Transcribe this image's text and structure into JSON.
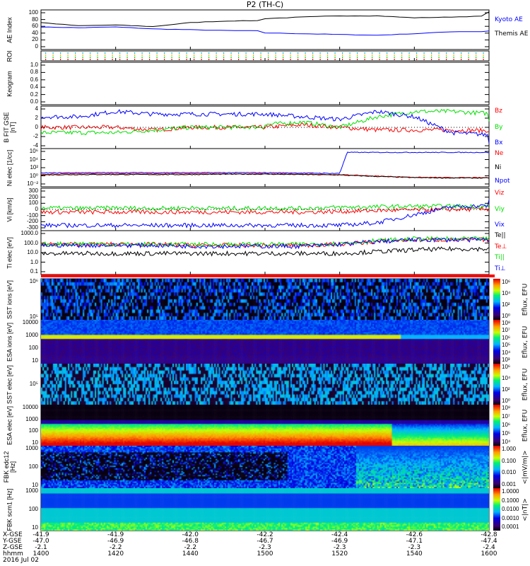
{
  "title": "P2 (TH-C)",
  "colors": {
    "red": "#ff0000",
    "green": "#00e000",
    "blue": "#0000ff",
    "black": "#000000"
  },
  "chart_data": [
    {
      "type": "line",
      "id": "ae",
      "ylabel": "AE Index",
      "ylim": [
        0,
        100
      ],
      "yticks": [
        "100",
        "80",
        "60",
        "40",
        "20",
        "0"
      ],
      "x": [
        1400,
        1410,
        1420,
        1430,
        1440,
        1450,
        1500,
        1510,
        1520,
        1530,
        1540,
        1550,
        1600
      ],
      "series": [
        {
          "name": "Kyoto AE",
          "color": "#0000ff",
          "values": [
            57,
            55,
            57,
            52,
            50,
            48,
            42,
            40,
            38,
            36,
            40,
            45,
            47
          ]
        },
        {
          "name": "Themis AE",
          "color": "#000000",
          "values": [
            68,
            60,
            62,
            58,
            68,
            72,
            78,
            82,
            85,
            85,
            80,
            82,
            95
          ]
        }
      ]
    },
    {
      "type": "table",
      "id": "roi",
      "ylabel": "ROI"
    },
    {
      "type": "line",
      "id": "keogram",
      "ylabel": "Keogram",
      "ylim": [
        0,
        1
      ],
      "yticks": [
        "1.0",
        "0.8",
        "0.6",
        "0.4",
        "0.2",
        "0.0"
      ],
      "series": []
    },
    {
      "type": "line",
      "id": "bfit",
      "ylabel": "B FIT GSE [nT]",
      "ylim": [
        -4,
        4
      ],
      "yticks": [
        "4",
        "2",
        "0",
        "-2",
        "-4"
      ],
      "x": [
        1400,
        1410,
        1420,
        1430,
        1440,
        1450,
        1500,
        1510,
        1520,
        1530,
        1540,
        1550,
        1600
      ],
      "series": [
        {
          "name": "Bz",
          "color": "#ff0000",
          "values": [
            0,
            0,
            0,
            -0.5,
            0,
            0,
            0,
            0.5,
            0,
            -0.5,
            -0.5,
            -0.5,
            -1
          ]
        },
        {
          "name": "By",
          "color": "#00e000",
          "values": [
            -1,
            -1,
            -1,
            -0.5,
            0,
            0,
            0.5,
            1,
            0,
            2,
            3,
            3,
            1
          ]
        },
        {
          "name": "Bx",
          "color": "#0000ff",
          "values": [
            2,
            2,
            3,
            2.5,
            2.5,
            2.5,
            2.5,
            2,
            1.5,
            3,
            2,
            -1,
            -3
          ]
        }
      ]
    },
    {
      "type": "line",
      "id": "ni",
      "ylabel": "Ni elec [1/cc]",
      "scale": "log",
      "ylim": [
        -3,
        7
      ],
      "yticks": [
        "10⁶",
        "10⁴",
        "10²",
        "10⁰",
        "10⁻²"
      ],
      "x": [
        1400,
        1410,
        1420,
        1430,
        1440,
        1450,
        1500,
        1510,
        1520,
        1522,
        1530,
        1540,
        1550,
        1600
      ],
      "series": [
        {
          "name": "Ne",
          "color": "#ff0000",
          "values": [
            0.3,
            0.4,
            0.4,
            0.4,
            0.4,
            0.4,
            0.4,
            0.3,
            0.2,
            0.1,
            -0.2,
            -0.5,
            -0.6,
            -0.6
          ]
        },
        {
          "name": "Ni",
          "color": "#000000",
          "values": [
            0.1,
            0.2,
            0.2,
            0.2,
            0.2,
            0.3,
            0.3,
            0.2,
            0.1,
            0,
            -0.3,
            -0.6,
            -0.7,
            -0.7
          ]
        },
        {
          "name": "Npot",
          "color": "#0000ff",
          "values": [
            0.6,
            0.7,
            0.7,
            0.7,
            0.7,
            0.7,
            0.7,
            0.6,
            0.5,
            6.0,
            6.0,
            6.0,
            6.0,
            6.0
          ]
        }
      ]
    },
    {
      "type": "line",
      "id": "vi",
      "ylabel": "Vi [km/s]",
      "ylim": [
        -400,
        400
      ],
      "yticks": [
        "300",
        "200",
        "100",
        "0",
        "-100",
        "-200",
        "-300"
      ],
      "x": [
        1400,
        1410,
        1420,
        1430,
        1440,
        1450,
        1500,
        1510,
        1520,
        1530,
        1540,
        1550,
        1600
      ],
      "series": [
        {
          "name": "Viz",
          "color": "#ff0000",
          "values": [
            -50,
            -50,
            -50,
            -50,
            -50,
            -50,
            -50,
            -50,
            -40,
            -20,
            -10,
            0,
            20
          ]
        },
        {
          "name": "Viy",
          "color": "#00e000",
          "values": [
            30,
            20,
            30,
            20,
            30,
            20,
            30,
            20,
            40,
            50,
            60,
            60,
            50
          ]
        },
        {
          "name": "Vix",
          "color": "#0000ff",
          "values": [
            -300,
            -300,
            -300,
            -300,
            -300,
            -300,
            -300,
            -300,
            -300,
            -250,
            -100,
            50,
            150
          ]
        }
      ]
    },
    {
      "type": "line",
      "id": "ti",
      "ylabel": "Ti elec [eV]",
      "scale": "log",
      "ylim": [
        -1.3,
        3.5
      ],
      "yticks": [
        "1000.0",
        "100.0",
        "10.0",
        "1.0",
        "0.1"
      ],
      "x": [
        1400,
        1410,
        1420,
        1430,
        1440,
        1450,
        1500,
        1510,
        1520,
        1530,
        1540,
        1550,
        1600
      ],
      "series": [
        {
          "name": "Te||",
          "color": "#000000",
          "values": [
            1.0,
            1.0,
            1.0,
            1.0,
            1.0,
            1.0,
            1.0,
            1.0,
            1.0,
            1.2,
            1.4,
            1.5,
            1.5
          ]
        },
        {
          "name": "Te⊥",
          "color": "#ff0000",
          "values": [
            2.0,
            2.0,
            2.0,
            2.0,
            1.9,
            1.9,
            1.9,
            1.9,
            2.0,
            2.3,
            2.5,
            2.5,
            2.5
          ]
        },
        {
          "name": "Ti||",
          "color": "#00e000",
          "values": [
            2.0,
            2.1,
            2.0,
            2.0,
            2.0,
            2.0,
            2.0,
            2.0,
            2.1,
            2.4,
            2.6,
            2.6,
            2.6
          ]
        },
        {
          "name": "Ti⊥",
          "color": "#0000ff",
          "values": [
            1.9,
            1.9,
            1.9,
            1.9,
            1.8,
            1.8,
            1.8,
            1.8,
            2.0,
            2.3,
            2.5,
            2.5,
            2.5
          ]
        }
      ]
    },
    {
      "type": "heatmap",
      "id": "sst_i",
      "ylabel": "SST ions [eV]",
      "yticks": [
        "10⁶",
        "10⁵"
      ],
      "colorbar": {
        "label": "Eflux, EFU",
        "ticks": [
          "10⁶",
          "10⁴",
          "10²",
          "10⁰"
        ]
      }
    },
    {
      "type": "heatmap",
      "id": "esa_i",
      "ylabel": "ESA ions [eV]",
      "yticks": [
        "10000",
        "1000",
        "100",
        "10"
      ],
      "colorbar": {
        "label": "Eflux, EFU",
        "ticks": [
          "10⁸",
          "10⁷",
          "10⁶",
          "10⁵",
          "10⁴",
          "10³"
        ]
      }
    },
    {
      "type": "heatmap",
      "id": "sst_e",
      "ylabel": "SST elec [eV]",
      "yticks": [
        "10⁵"
      ],
      "colorbar": {
        "label": "Eflux, EFU",
        "ticks": [
          "10⁶",
          "10⁴",
          "10²",
          "10⁰"
        ]
      }
    },
    {
      "type": "heatmap",
      "id": "esa_e",
      "ylabel": "ESA elec [eV]",
      "yticks": [
        "10000",
        "1000",
        "100",
        "10"
      ],
      "colorbar": {
        "label": "Eflux, EFU",
        "ticks": [
          "10⁸",
          "10⁷",
          "10⁶",
          "10⁵",
          "10⁴"
        ]
      }
    },
    {
      "type": "heatmap",
      "id": "fbk_e",
      "ylabel": "FBK edc12 [Hz]",
      "yticks": [
        "1000",
        "100",
        "10"
      ],
      "colorbar": {
        "label": "<|mV/m|>",
        "ticks": [
          "1.000",
          "0.100",
          "0.010",
          "0.001"
        ]
      }
    },
    {
      "type": "heatmap",
      "id": "fbk_b",
      "ylabel": "FBK scm1 [Hz]",
      "yticks": [
        "1000",
        "100",
        "10"
      ],
      "colorbar": {
        "label": "<|nT|>",
        "ticks": [
          "1.0000",
          "0.1000",
          "0.0100",
          "0.0010",
          "0.0001"
        ]
      }
    }
  ],
  "xaxis": {
    "row_labels": [
      "X-GSE",
      "Y-GSE",
      "Z-GSE",
      "hhmm"
    ],
    "date": "2016 Jul 02",
    "ticks": [
      {
        "x": "-41.9",
        "y": "-47.0",
        "z": "-2.1",
        "t": "1400"
      },
      {
        "x": "-41.9",
        "y": "-46.9",
        "z": "-2.2",
        "t": "1420"
      },
      {
        "x": "-42.0",
        "y": "-46.8",
        "z": "-2.2",
        "t": "1440"
      },
      {
        "x": "-42.2",
        "y": "-46.7",
        "z": "-2.3",
        "t": "1500"
      },
      {
        "x": "-42.4",
        "y": "-46.9",
        "z": "-2.3",
        "t": "1520"
      },
      {
        "x": "-42.6",
        "y": "-47.1",
        "z": "-2.3",
        "t": "1540"
      },
      {
        "x": "-42.8",
        "y": "-47.4",
        "z": "-2.4",
        "t": "1600"
      }
    ]
  }
}
